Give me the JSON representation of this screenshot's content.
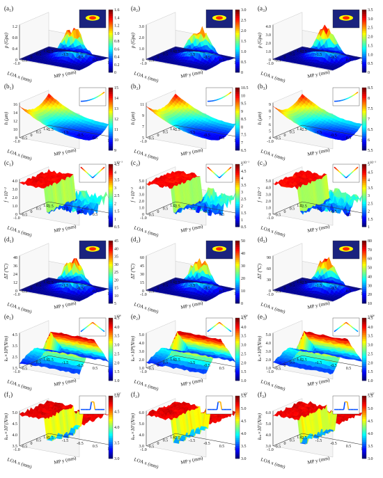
{
  "figure": {
    "colors": {
      "jet_stops": [
        "#00007f",
        "#0000ff",
        "#007fff",
        "#00ffff",
        "#7fff7f",
        "#ffff00",
        "#ff7f00",
        "#ff0000",
        "#7f0000"
      ],
      "inset_bg": "#1a237e",
      "inset_hot": "#ff2a00"
    },
    "x_axis": {
      "label": "LOA x (mm)",
      "ticks": [
        "-1.0",
        "-0.5",
        "0",
        "0.5",
        "1.0"
      ]
    },
    "y_axis": {
      "label": "MP y (mm)",
      "ticks": [
        "-2.5",
        "-1.5",
        "-0.5",
        "0.5",
        "1.5"
      ]
    }
  },
  "chart_data": [
    {
      "id": "a1",
      "label": "(a₁)",
      "type": "surface",
      "shape": "ridge",
      "zlabel": "p (Gpa)",
      "zticks": [
        "0",
        "0.4",
        "0.8",
        "1.2"
      ],
      "cbar_ticks": [
        "0",
        "0.2",
        "0.4",
        "0.6",
        "0.8",
        "1.0",
        "1.2",
        "1.4",
        "1.6"
      ],
      "cbar_max": 1.6,
      "inset": "spot"
    },
    {
      "id": "a2",
      "label": "(a₂)",
      "type": "surface",
      "shape": "ridge",
      "zlabel": "p (Gpa)",
      "zticks": [
        "0",
        "1.0",
        "2.0",
        "3.0"
      ],
      "cbar_ticks": [
        "0",
        "0.5",
        "1.0",
        "1.5",
        "2.0",
        "2.5",
        "3.0"
      ],
      "cbar_max": 3.0,
      "inset": "spot"
    },
    {
      "id": "a3",
      "label": "(a₃)",
      "type": "surface",
      "shape": "ridge",
      "zlabel": "p (Gpa)",
      "zticks": [
        "0",
        "1.0",
        "2.0",
        "3.0",
        "4.0"
      ],
      "cbar_ticks": [
        "0",
        "0.5",
        "1.0",
        "1.5",
        "2.0",
        "2.5",
        "3.0",
        "3.5"
      ],
      "cbar_max": 3.5,
      "inset": "spot"
    },
    {
      "id": "b1",
      "label": "(b₁)",
      "type": "surface",
      "shape": "bowl",
      "zlabel": "h (μm)",
      "zticks": [
        "8",
        "10",
        "12",
        "14",
        "16"
      ],
      "cbar_ticks": [
        "9",
        "10",
        "11",
        "12",
        "13",
        "14",
        "15"
      ],
      "cbar_max": 15,
      "inset": "curve"
    },
    {
      "id": "b2",
      "label": "(b₂)",
      "type": "surface",
      "shape": "bowl",
      "zlabel": "h (μm)",
      "zticks": [
        "5",
        "7",
        "9",
        "11"
      ],
      "cbar_ticks": [
        "6.5",
        "7",
        "7.5",
        "8",
        "8.5",
        "9",
        "9.5",
        "10",
        "10.5"
      ],
      "cbar_max": 10.5,
      "inset": "curve"
    },
    {
      "id": "b3",
      "label": "(b₃)",
      "type": "surface",
      "shape": "bowl",
      "zlabel": "h (μm)",
      "zticks": [
        "4",
        "5",
        "6",
        "7",
        "8",
        "9"
      ],
      "cbar_ticks": [
        "5.5",
        "6",
        "6.5",
        "7",
        "7.5",
        "8",
        "8.5"
      ],
      "cbar_max": 8.5,
      "inset": "curve"
    },
    {
      "id": "c1",
      "label": "(c₁)",
      "type": "surface",
      "shape": "plateau",
      "zlabel": "f ×10⁻²",
      "zticks": [
        "0",
        "1.0",
        "2.0",
        "3.0",
        "4.0"
      ],
      "cbar_ticks": [
        "0.5",
        "1",
        "1.5",
        "2",
        "2.5",
        "3",
        "3.5",
        "4",
        "4.5"
      ],
      "cbar_max": 4.5,
      "cbar_exp": "×10⁻²",
      "inset": "vcurve"
    },
    {
      "id": "c2",
      "label": "(c₂)",
      "type": "surface",
      "shape": "plateau",
      "zlabel": "f ×10⁻²",
      "zticks": [
        "0",
        "1.0",
        "2.0",
        "3.0",
        "4.0",
        "5.0"
      ],
      "cbar_ticks": [
        "0.5",
        "1",
        "1.5",
        "2",
        "2.5",
        "3",
        "3.5",
        "4",
        "4.5",
        "5"
      ],
      "cbar_max": 5,
      "cbar_exp": "×10⁻²",
      "inset": "vcurve"
    },
    {
      "id": "c3",
      "label": "(c₃)",
      "type": "surface",
      "shape": "plateau",
      "zlabel": "f ×10⁻²",
      "zticks": [
        "0",
        "1.0",
        "2.0",
        "3.0",
        "4.0",
        "5.0"
      ],
      "cbar_ticks": [
        "1",
        "1.5",
        "2",
        "2.5",
        "3",
        "3.5",
        "4",
        "4.5",
        "5"
      ],
      "cbar_max": 5,
      "cbar_exp": "×10⁻²",
      "inset": "vcurve"
    },
    {
      "id": "d1",
      "label": "(d₁)",
      "type": "surface",
      "shape": "ridge",
      "zlabel": "ΔT (℃)",
      "zticks": [
        "0",
        "12",
        "24",
        "36",
        "48"
      ],
      "cbar_ticks": [
        "5",
        "10",
        "15",
        "20",
        "25",
        "30",
        "35",
        "40",
        "45"
      ],
      "cbar_max": 45,
      "inset": "spot"
    },
    {
      "id": "d2",
      "label": "(d₂)",
      "type": "surface",
      "shape": "ridge",
      "zlabel": "ΔT (℃)",
      "zticks": [
        "0",
        "15",
        "30",
        "45",
        "60"
      ],
      "cbar_ticks": [
        "0",
        "10",
        "20",
        "30",
        "40",
        "50"
      ],
      "cbar_max": 50,
      "inset": "spot"
    },
    {
      "id": "d3",
      "label": "(d₃)",
      "type": "surface",
      "shape": "ridge",
      "zlabel": "ΔT (℃)",
      "zticks": [
        "0",
        "30",
        "60",
        "90"
      ],
      "cbar_ticks": [
        "10",
        "20",
        "30",
        "40",
        "50",
        "60",
        "70",
        "80"
      ],
      "cbar_max": 80,
      "inset": "spot"
    },
    {
      "id": "e1",
      "label": "(e₁)",
      "type": "surface",
      "shape": "wedge",
      "zlabel": "kₙ×10⁸(N/m)",
      "zticks": [
        "1.5",
        "2.5",
        "3.5",
        "4.5"
      ],
      "cbar_ticks": [
        "1.0",
        "1.5",
        "2.0",
        "2.5",
        "3.0",
        "3.5",
        "4.0",
        "4.5"
      ],
      "cbar_max": 4.5,
      "cbar_exp": "×10⁸",
      "inset": "tent"
    },
    {
      "id": "e2",
      "label": "(e₂)",
      "type": "surface",
      "shape": "wedge",
      "zlabel": "kₙ×10⁸(N/m)",
      "zticks": [
        "1.0",
        "2.0",
        "3.0",
        "4.0",
        "5.0"
      ],
      "cbar_ticks": [
        "1.0",
        "1.5",
        "2.0",
        "2.5",
        "3.0",
        "3.5",
        "4.0",
        "4.5"
      ],
      "cbar_max": 4.5,
      "cbar_exp": "×10⁸",
      "inset": "tent"
    },
    {
      "id": "e3",
      "label": "(e₃)",
      "type": "surface",
      "shape": "wedge",
      "zlabel": "kₙ×10⁸(N/m)",
      "zticks": [
        "1.0",
        "2.0",
        "3.0",
        "4.0",
        "5.0"
      ],
      "cbar_ticks": [
        "1.0",
        "1.5",
        "2.0",
        "2.5",
        "3.0",
        "3.5",
        "4.0",
        "4.5"
      ],
      "cbar_max": 4.5,
      "cbar_exp": "×10⁸",
      "inset": "tent"
    },
    {
      "id": "f1",
      "label": "(f₁)",
      "type": "surface",
      "shape": "dip",
      "zlabel": "kₜₙ×10⁷(N/m)",
      "zticks": [
        "3.5",
        "4.0",
        "4.5",
        "5.0"
      ],
      "cbar_ticks": [
        "3.0",
        "3.5",
        "4.0",
        "4.5",
        "5.0"
      ],
      "cbar_max": 5.0,
      "cbar_exp": "×10⁷",
      "inset": "arch"
    },
    {
      "id": "f2",
      "label": "(f₂)",
      "type": "surface",
      "shape": "dip",
      "zlabel": "kₜₙ×10⁷(N/m)",
      "zticks": [
        "3.0",
        "4.0",
        "5.0",
        "6.0"
      ],
      "cbar_ticks": [
        "3.0",
        "3.5",
        "4.0",
        "4.5",
        "5.0",
        "5.5"
      ],
      "cbar_max": 5.5,
      "cbar_exp": "×10⁷",
      "inset": "arch"
    },
    {
      "id": "f3",
      "label": "(f₃)",
      "type": "surface",
      "shape": "dip",
      "zlabel": "kₜₙ×10⁷(N/m)",
      "zticks": [
        "3.0",
        "4.0",
        "5.0",
        "6.0"
      ],
      "cbar_ticks": [
        "3.0",
        "3.5",
        "4.0",
        "4.5",
        "5.0",
        "5.5"
      ],
      "cbar_max": 5.5,
      "cbar_exp": "×10⁷",
      "inset": "arch"
    }
  ]
}
